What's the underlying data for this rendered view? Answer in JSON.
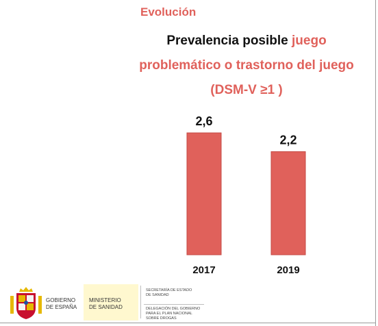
{
  "header": {
    "section_title": "Evolución"
  },
  "chart_title": {
    "part1": "Prevalencia posible ",
    "part2": "juego problemático o trastorno del juego",
    "part3": " (DSM-V ≥1 )"
  },
  "colors": {
    "accent": "#e0615b",
    "bar": "#e0615b",
    "bar_edge": "#c44a44",
    "text": "#111111"
  },
  "chart_data": {
    "type": "bar",
    "title": "Prevalencia posible juego problemático o trastorno del juego (DSM-V ≥1 )",
    "categories": [
      "2017",
      "2019"
    ],
    "values": [
      2.6,
      2.2
    ],
    "data_labels": [
      "2,6",
      "2,2"
    ],
    "ylim": [
      0,
      2.6
    ],
    "grid": false,
    "legend": "none"
  },
  "footer": {
    "crest_icon": "spanish-royal-crest-icon",
    "government": "GOBIERNO\nDE ESPAÑA",
    "ministry": "MINISTERIO\nDE SANIDAD",
    "secretariat": "SECRETARÍA DE ESTADO\nDE SANIDAD",
    "delegation": "DELEGACIÓN DEL GOBIERNO\nPARA EL PLAN NACIONAL\nSOBRE DROGAS"
  }
}
